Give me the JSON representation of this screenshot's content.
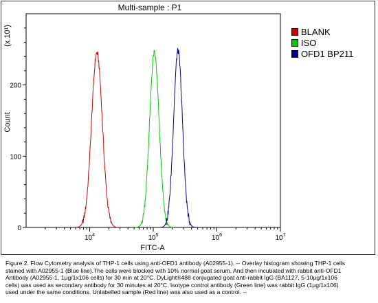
{
  "chart_data": {
    "type": "line",
    "title": "Multi-sample : P1",
    "xlabel": "FITC-A",
    "ylabel": "Count",
    "y_multiplier": "(x 10¹)",
    "x_scale": "log",
    "xlim": [
      1000,
      10000000
    ],
    "ylim": [
      0,
      300
    ],
    "x_ticks": [
      {
        "value": 10000,
        "base": "10",
        "exp": "4"
      },
      {
        "value": 100000,
        "base": "10",
        "exp": "5"
      },
      {
        "value": 1000000,
        "base": "10",
        "exp": "6"
      },
      {
        "value": 10000000,
        "base": "10",
        "exp": "7"
      }
    ],
    "y_ticks": [
      "0",
      "100",
      "200"
    ],
    "y_tick_values": [
      0,
      100,
      200
    ],
    "legend_position": "right",
    "series": [
      {
        "name": "BLANK",
        "color": "#cc0000",
        "peak_x": 13000,
        "peak_y": 245,
        "spread": 0.085
      },
      {
        "name": "ISO",
        "color": "#00cc00",
        "peak_x": 104000,
        "peak_y": 245,
        "spread": 0.075
      },
      {
        "name": "OFD1 BP211",
        "color": "#000099",
        "peak_x": 245000,
        "peak_y": 248,
        "spread": 0.07
      }
    ]
  },
  "caption": [
    "Figure 2. Flow Cytometry analysis of THP-1 cells using anti-OFD1 antibody (A02955-1).  -- Overlay histogram showing THP-1 cells",
    "stained with A02955-1 (Blue line).The cells were blocked with 10% normal goat serum.  And then incubated with rabbit anti-OFD1",
    "Antibody (A02955-1, 1μg/1x106 cells) for 30 min at 20°C.  DyLight®488 conjugated goat anti-rabbit IgG (BA1127, 5-10μg/1x106",
    "cells) was used as secondary antibody for 30 minutes at 20°C.  Isotype control antibody (Green line) was rabbit IgG (1μg/1x106)",
    "used under the same conditions.  Unlabelled sample (Red line) was also used as a control. --"
  ]
}
